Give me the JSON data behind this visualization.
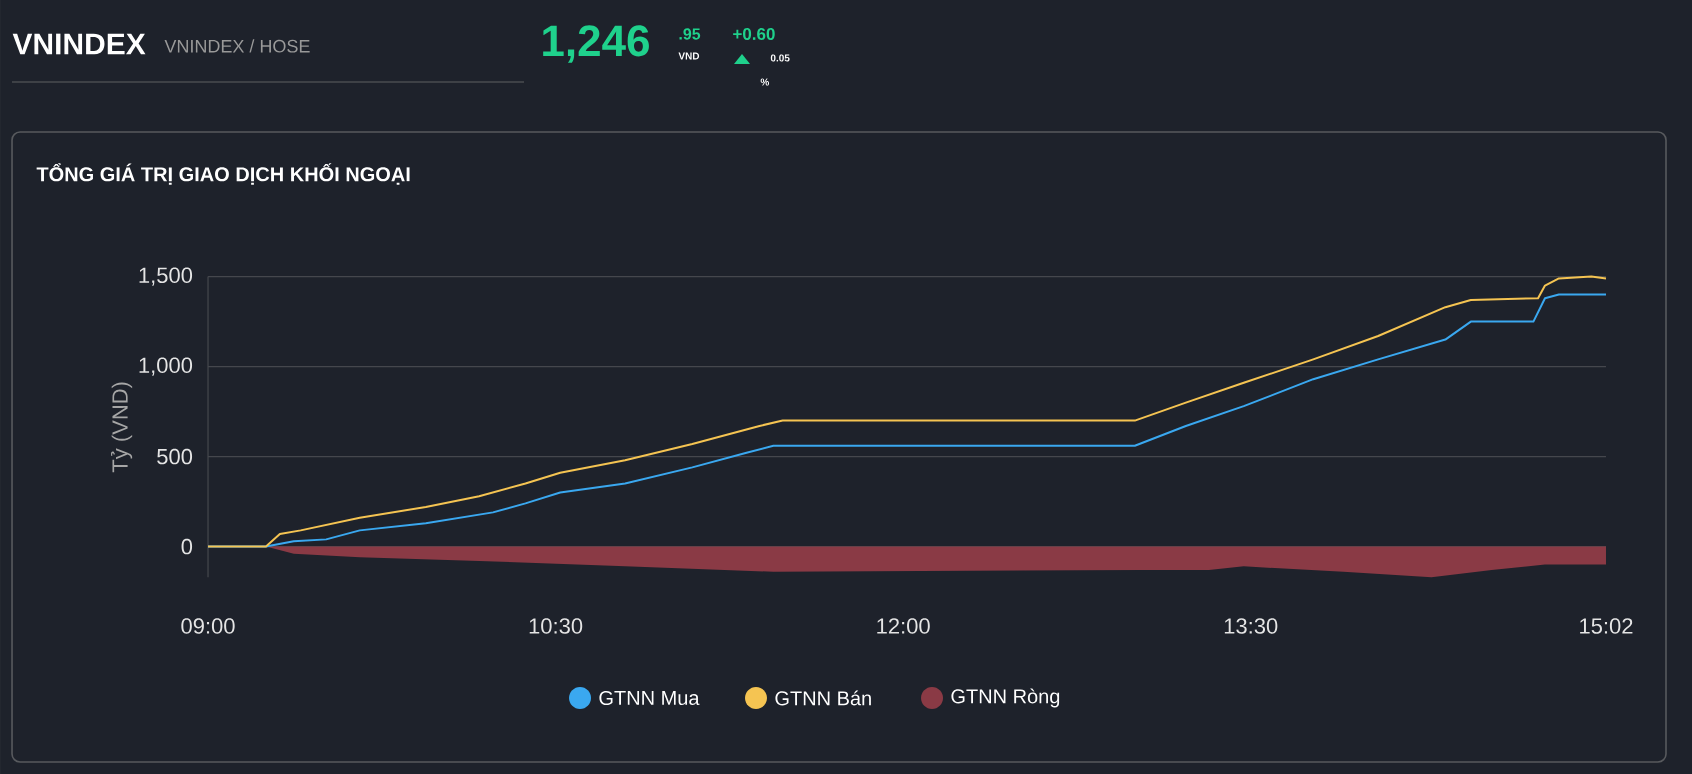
{
  "chart_data": {
    "type": "line",
    "title": "TỔNG GIÁ TRỊ GIAO DỊCH KHỐI NGOẠI",
    "ylabel": "Tỷ (VND)",
    "annotations": [
      "VNINDEX",
      "VNINDEX / HOSE",
      "1,246",
      ".95",
      "VND",
      "+0.60",
      "0.05",
      "%"
    ],
    "xlim": [
      9,
      15.0333
    ],
    "xticks": [
      {
        "value": 9,
        "label": "09:00"
      },
      {
        "value": 10.5,
        "label": "10:30"
      },
      {
        "value": 12,
        "label": "12:00"
      },
      {
        "value": 13.5,
        "label": "13:30"
      },
      {
        "value": 15.0333,
        "label": "15:02"
      }
    ],
    "ylim": [
      -170,
      1500
    ],
    "yticks": [
      0,
      500,
      {
        "value": 1000,
        "label": "1,000"
      },
      {
        "value": 1500,
        "label": "1,500"
      }
    ],
    "grid": "y",
    "legend": "bottom",
    "marker": "none",
    "line_style": "solid",
    "series": [
      {
        "name": "GTNN Mua",
        "color": "#3aa8f0",
        "type": "line",
        "x": [
          9,
          9.25,
          9.37,
          9.51,
          9.655,
          9.94,
          10.23,
          10.37,
          10.52,
          10.8,
          11.09,
          11.32,
          11.44,
          13,
          13.22,
          13.47,
          13.77,
          14.05,
          14.34,
          14.45,
          14.72,
          14.77,
          14.83,
          15.0333
        ],
        "values": [
          0,
          0,
          30,
          40,
          90,
          130,
          190,
          240,
          300,
          350,
          440,
          520,
          560,
          560,
          670,
          780,
          930,
          1040,
          1150,
          1250,
          1250,
          1380,
          1400,
          1400
        ]
      },
      {
        "name": "GTNN Bán",
        "color": "#f5c452",
        "type": "line",
        "x": [
          9,
          9.25,
          9.31,
          9.4,
          9.655,
          9.94,
          10.17,
          10.37,
          10.52,
          10.8,
          11.09,
          11.38,
          11.48,
          13,
          13.22,
          13.47,
          13.77,
          14.05,
          14.34,
          14.45,
          14.74,
          14.77,
          14.83,
          14.97,
          15.0333
        ],
        "values": [
          0,
          0,
          70,
          90,
          160,
          220,
          280,
          350,
          410,
          480,
          570,
          670,
          700,
          700,
          800,
          910,
          1040,
          1170,
          1330,
          1370,
          1380,
          1450,
          1490,
          1500,
          1490
        ]
      },
      {
        "name": "GTNN Ròng",
        "color": "#8a3a45",
        "type": "area",
        "x": [
          9,
          9.25,
          9.37,
          9.655,
          10.17,
          10.8,
          11.44,
          13.03,
          13.32,
          13.47,
          13.9,
          14.28,
          14.54,
          14.77,
          15.0333
        ],
        "values": [
          0,
          0,
          -40,
          -60,
          -80,
          -110,
          -140,
          -130,
          -130,
          -110,
          -140,
          -170,
          -130,
          -100,
          -100
        ]
      }
    ]
  }
}
